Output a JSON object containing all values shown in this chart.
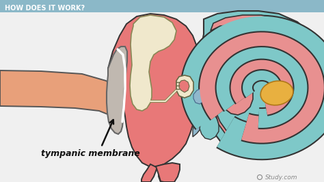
{
  "bg_color": "#e8e8e8",
  "header_bg": "#8bb8c8",
  "header_text": "HOW DOES IT WORK?",
  "header_text_color": "#ffffff",
  "label_text": "tympanic membrane",
  "label_color": "#111111",
  "watermark": "Study.com",
  "watermark_color": "#888888",
  "canal_color": "#e8a07a",
  "canal_outline": "#555555",
  "middle_ear_fill": "#e87878",
  "middle_ear_outline": "#333333",
  "bone_fill": "#f0e8cc",
  "bone_outline": "#888855",
  "membrane_fill": "#c0b8b0",
  "membrane_outline": "#555555",
  "cochlea_teal": "#7ec8c8",
  "cochlea_pink": "#e89090",
  "cochlea_outline": "#333333",
  "cochlea_gold": "#e8b040",
  "stirrup_fill": "#f0e8cc",
  "stirrup_outline": "#666644",
  "blue_accent": "#90b8cc",
  "figsize": [
    4.74,
    2.66
  ],
  "dpi": 100
}
